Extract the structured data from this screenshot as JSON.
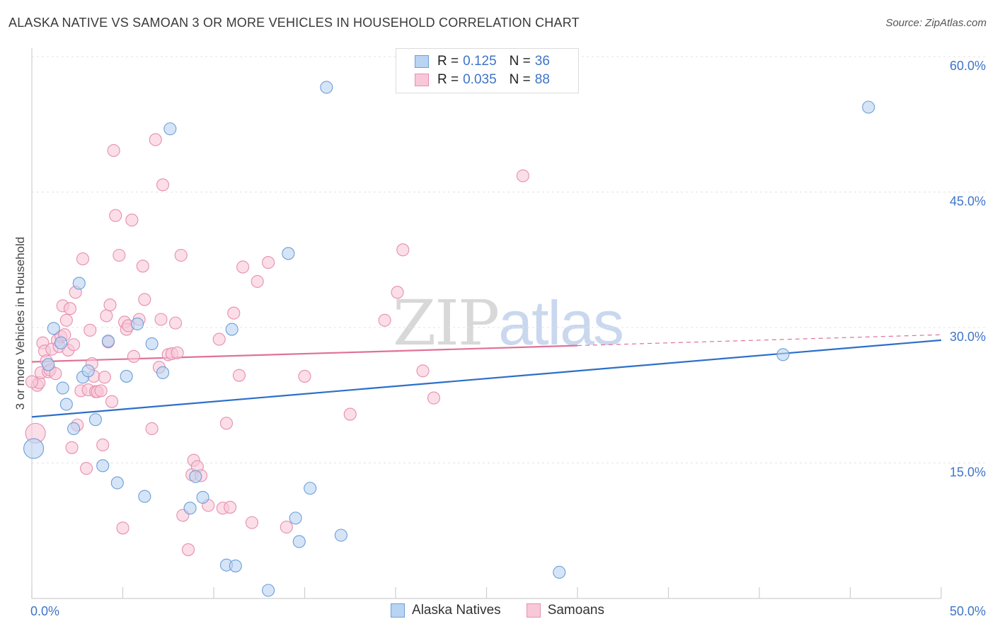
{
  "title": "ALASKA NATIVE VS SAMOAN 3 OR MORE VEHICLES IN HOUSEHOLD CORRELATION CHART",
  "source": "Source: ZipAtlas.com",
  "watermark": {
    "zip": "ZIP",
    "atlas": "atlas"
  },
  "legend": {
    "r_label": "R =",
    "n_label": "N =",
    "series": [
      {
        "r": "0.125",
        "n": "36"
      },
      {
        "r": "0.035",
        "n": "88"
      }
    ]
  },
  "colors": {
    "alaska_fill": "#b9d3f2",
    "alaska_stroke": "#6d9ed8",
    "alaska_line": "#2c6fc9",
    "samoan_fill": "#f8c8d8",
    "samoan_stroke": "#e68fae",
    "samoan_line": "#e07199",
    "grid": "#e3e3e3",
    "axis_text": "#3e74c8"
  },
  "chart_data": {
    "type": "scatter",
    "title": "ALASKA NATIVE VS SAMOAN 3 OR MORE VEHICLES IN HOUSEHOLD CORRELATION CHART",
    "xlabel": "",
    "ylabel": "3 or more Vehicles in Household",
    "xlim": [
      0,
      50
    ],
    "ylim": [
      0,
      60
    ],
    "x_tick_labels": [
      "0.0%",
      "50.0%"
    ],
    "y_ticks": [
      {
        "value": 15,
        "label": "15.0%"
      },
      {
        "value": 30,
        "label": "30.0%"
      },
      {
        "value": 45,
        "label": "45.0%"
      },
      {
        "value": 60,
        "label": "60.0%"
      }
    ],
    "grid": true,
    "legend_position": "top-center",
    "series": [
      {
        "name": "Alaska Natives",
        "r": 0.125,
        "n": 36,
        "trend": {
          "x0": 0,
          "y0": 20.1,
          "x1": 50,
          "y1": 28.6,
          "solid_until": 50
        },
        "points": [
          [
            0.1,
            16.6
          ],
          [
            0.9,
            25.9
          ],
          [
            1.2,
            29.9
          ],
          [
            1.6,
            28.3
          ],
          [
            1.7,
            23.3
          ],
          [
            1.9,
            21.5
          ],
          [
            2.3,
            18.8
          ],
          [
            2.6,
            34.9
          ],
          [
            2.8,
            24.5
          ],
          [
            3.1,
            25.2
          ],
          [
            3.5,
            19.8
          ],
          [
            3.9,
            14.7
          ],
          [
            4.2,
            28.5
          ],
          [
            4.7,
            12.8
          ],
          [
            5.2,
            24.6
          ],
          [
            5.8,
            30.4
          ],
          [
            6.2,
            11.3
          ],
          [
            6.6,
            28.2
          ],
          [
            7.2,
            25.0
          ],
          [
            7.6,
            52.0
          ],
          [
            8.7,
            10.0
          ],
          [
            9.0,
            13.5
          ],
          [
            9.4,
            11.2
          ],
          [
            10.7,
            3.7
          ],
          [
            11.0,
            29.8
          ],
          [
            11.2,
            3.6
          ],
          [
            13.0,
            0.9
          ],
          [
            14.1,
            38.2
          ],
          [
            14.5,
            8.9
          ],
          [
            14.7,
            6.3
          ],
          [
            15.3,
            12.2
          ],
          [
            16.2,
            56.6
          ],
          [
            17.0,
            7.0
          ],
          [
            29.0,
            2.9
          ],
          [
            41.3,
            27.0
          ],
          [
            46.0,
            54.4
          ]
        ]
      },
      {
        "name": "Samoans",
        "r": 0.035,
        "n": 88,
        "trend": {
          "x0": 0,
          "y0": 26.2,
          "x1": 50,
          "y1": 29.2,
          "solid_until": 30
        },
        "points": [
          [
            0.2,
            18.3
          ],
          [
            0.3,
            23.6
          ],
          [
            0.4,
            23.9
          ],
          [
            0.5,
            25.0
          ],
          [
            0.6,
            28.3
          ],
          [
            0.7,
            27.4
          ],
          [
            0.8,
            26.3
          ],
          [
            0.9,
            25.1
          ],
          [
            1.0,
            25.3
          ],
          [
            1.1,
            27.6
          ],
          [
            1.3,
            24.9
          ],
          [
            1.4,
            28.6
          ],
          [
            1.5,
            27.9
          ],
          [
            1.6,
            29.0
          ],
          [
            1.7,
            32.4
          ],
          [
            1.8,
            29.2
          ],
          [
            1.9,
            30.8
          ],
          [
            2.0,
            27.5
          ],
          [
            2.1,
            32.1
          ],
          [
            2.2,
            16.7
          ],
          [
            2.3,
            28.1
          ],
          [
            2.4,
            33.9
          ],
          [
            2.5,
            19.2
          ],
          [
            2.7,
            23.0
          ],
          [
            2.8,
            37.6
          ],
          [
            3.0,
            14.4
          ],
          [
            3.1,
            23.1
          ],
          [
            3.2,
            29.7
          ],
          [
            3.3,
            26.0
          ],
          [
            3.4,
            24.6
          ],
          [
            3.5,
            22.9
          ],
          [
            3.6,
            22.9
          ],
          [
            3.8,
            23.0
          ],
          [
            3.9,
            17.0
          ],
          [
            4.0,
            24.5
          ],
          [
            4.1,
            31.3
          ],
          [
            4.2,
            28.4
          ],
          [
            4.3,
            32.5
          ],
          [
            4.4,
            21.8
          ],
          [
            4.5,
            49.6
          ],
          [
            4.6,
            42.4
          ],
          [
            4.8,
            38.0
          ],
          [
            5.0,
            7.8
          ],
          [
            5.1,
            30.6
          ],
          [
            5.2,
            29.8
          ],
          [
            5.3,
            30.2
          ],
          [
            5.5,
            41.9
          ],
          [
            5.6,
            26.8
          ],
          [
            5.9,
            30.9
          ],
          [
            6.1,
            36.8
          ],
          [
            6.2,
            33.1
          ],
          [
            6.6,
            18.8
          ],
          [
            6.8,
            50.8
          ],
          [
            7.0,
            25.6
          ],
          [
            7.1,
            30.9
          ],
          [
            7.2,
            45.8
          ],
          [
            7.5,
            27.0
          ],
          [
            7.7,
            27.1
          ],
          [
            7.9,
            30.5
          ],
          [
            8.0,
            27.2
          ],
          [
            8.2,
            38.0
          ],
          [
            8.3,
            9.2
          ],
          [
            8.6,
            5.4
          ],
          [
            8.8,
            13.7
          ],
          [
            8.9,
            15.3
          ],
          [
            9.1,
            14.6
          ],
          [
            9.3,
            13.6
          ],
          [
            9.7,
            10.3
          ],
          [
            10.3,
            28.7
          ],
          [
            10.5,
            10.0
          ],
          [
            10.7,
            19.4
          ],
          [
            10.9,
            10.1
          ],
          [
            11.1,
            31.6
          ],
          [
            11.4,
            24.7
          ],
          [
            11.6,
            36.7
          ],
          [
            12.1,
            8.4
          ],
          [
            12.4,
            35.1
          ],
          [
            13.0,
            37.2
          ],
          [
            14.0,
            7.9
          ],
          [
            15.0,
            24.6
          ],
          [
            17.5,
            20.4
          ],
          [
            19.4,
            30.8
          ],
          [
            20.1,
            33.9
          ],
          [
            20.4,
            38.6
          ],
          [
            21.5,
            25.2
          ],
          [
            22.1,
            22.2
          ],
          [
            27.0,
            46.8
          ],
          [
            0.0,
            24.0
          ]
        ]
      }
    ]
  },
  "bottom_legend": [
    "Alaska Natives",
    "Samoans"
  ]
}
